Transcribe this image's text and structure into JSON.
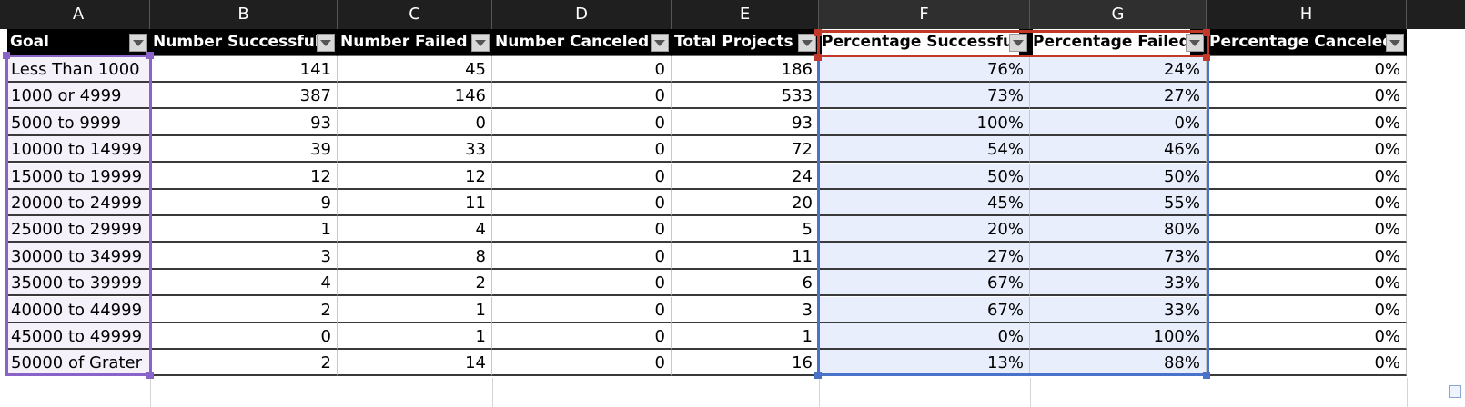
{
  "columns": [
    "A",
    "B",
    "C",
    "D",
    "E",
    "F",
    "G",
    "H"
  ],
  "headers": [
    "Goal",
    "Number Successful",
    "Number Failed",
    "Number Canceled",
    "Total Projects",
    "Percentage Successful",
    "Percentage Failed",
    "Percentage Canceled"
  ],
  "rows": [
    [
      "Less Than 1000",
      "141",
      "45",
      "0",
      "186",
      "76%",
      "24%",
      "0%"
    ],
    [
      "1000 or 4999",
      "387",
      "146",
      "0",
      "533",
      "73%",
      "27%",
      "0%"
    ],
    [
      "5000 to 9999",
      "93",
      "0",
      "0",
      "93",
      "100%",
      "0%",
      "0%"
    ],
    [
      "10000 to 14999",
      "39",
      "33",
      "0",
      "72",
      "54%",
      "46%",
      "0%"
    ],
    [
      "15000 to 19999",
      "12",
      "12",
      "0",
      "24",
      "50%",
      "50%",
      "0%"
    ],
    [
      "20000 to 24999",
      "9",
      "11",
      "0",
      "20",
      "45%",
      "55%",
      "0%"
    ],
    [
      "25000 to 29999",
      "1",
      "4",
      "0",
      "5",
      "20%",
      "80%",
      "0%"
    ],
    [
      "30000 to 34999",
      "3",
      "8",
      "0",
      "11",
      "27%",
      "73%",
      "0%"
    ],
    [
      "35000 to 39999",
      "4",
      "2",
      "0",
      "6",
      "67%",
      "33%",
      "0%"
    ],
    [
      "40000 to 44999",
      "2",
      "1",
      "0",
      "3",
      "67%",
      "33%",
      "0%"
    ],
    [
      "45000 to 49999",
      "0",
      "1",
      "0",
      "1",
      "0%",
      "100%",
      "0%"
    ],
    [
      "50000 of Grater",
      "2",
      "14",
      "0",
      "16",
      "13%",
      "88%",
      "0%"
    ]
  ],
  "colors": {
    "selection_purple": "#8a63c9",
    "selection_blue": "#4a72c9",
    "selection_red": "#c0392b",
    "header_bg": "#000000"
  },
  "icons": {
    "filter": "chevron-down-icon",
    "resize": "table-resize-icon"
  }
}
